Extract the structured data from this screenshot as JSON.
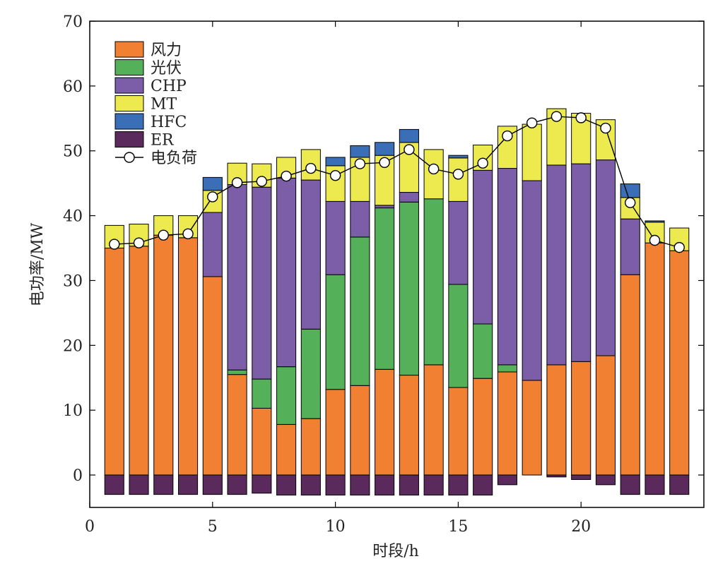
{
  "chart_data": {
    "type": "bar",
    "stacked": true,
    "xlabel": "时段/h",
    "ylabel": "电功率/MW",
    "xlim": [
      0,
      25
    ],
    "ylim": [
      -5,
      70
    ],
    "xticks": [
      0,
      5,
      10,
      15,
      20
    ],
    "yticks": [
      0,
      10,
      20,
      30,
      40,
      50,
      60,
      70
    ],
    "x": [
      1,
      2,
      3,
      4,
      5,
      6,
      7,
      8,
      9,
      10,
      11,
      12,
      13,
      14,
      15,
      16,
      17,
      18,
      19,
      20,
      21,
      22,
      23,
      24
    ],
    "legend_position": "top-left",
    "series": [
      {
        "name": "风力",
        "color": "#f28033",
        "values": [
          35,
          35.3,
          37,
          36.6,
          30.6,
          15.5,
          10.3,
          7.8,
          8.7,
          13.2,
          13.8,
          16.3,
          15.4,
          17,
          13.5,
          14.9,
          15.9,
          14.6,
          17,
          17.5,
          18.4,
          30.9,
          35.8,
          34.6
        ]
      },
      {
        "name": "光伏",
        "color": "#55b05a",
        "values": [
          0,
          0,
          0,
          0,
          0,
          0.7,
          4.5,
          8.9,
          13.8,
          17.7,
          22.9,
          24.9,
          26.7,
          25.6,
          15.9,
          8.4,
          1.1,
          0,
          0,
          0,
          0,
          0,
          0,
          0
        ]
      },
      {
        "name": "CHP",
        "color": "#7b5ea7",
        "values": [
          0,
          0,
          0,
          0,
          9.9,
          28.6,
          29.6,
          29.1,
          23,
          11.3,
          5.5,
          0.4,
          1.5,
          0,
          12.8,
          23.7,
          30.3,
          30.8,
          30.8,
          30.5,
          30.2,
          8.6,
          0,
          0
        ]
      },
      {
        "name": "MT",
        "color": "#ecea4f",
        "values": [
          3.5,
          3.4,
          3,
          3.4,
          3.4,
          3.3,
          3.6,
          3.2,
          4.7,
          5.5,
          6.8,
          7.7,
          7.7,
          7.6,
          6.7,
          3.9,
          6.5,
          8.7,
          8.7,
          7.8,
          6.2,
          3.3,
          3.2,
          3.5
        ]
      },
      {
        "name": "HFC",
        "color": "#3a6fb8",
        "values": [
          0,
          0,
          0,
          0,
          2,
          0,
          0,
          0,
          0,
          1.3,
          1.8,
          2,
          2,
          0,
          0.4,
          0,
          0,
          0,
          0,
          0,
          0,
          2.1,
          0.2,
          0
        ]
      },
      {
        "name": "ER",
        "color": "#5b2a5c",
        "values": [
          -3,
          -3,
          -3,
          -3,
          -3,
          -3,
          -2.8,
          -3.1,
          -3.1,
          -3.1,
          -3.1,
          -3.1,
          -3.1,
          -3.1,
          -3.1,
          -3.1,
          -1.5,
          0,
          -0.3,
          -0.7,
          -1.5,
          -3,
          -3,
          -3
        ]
      }
    ],
    "line_series": {
      "name": "电负荷",
      "values": [
        35.6,
        35.8,
        37,
        37.2,
        42.9,
        45.1,
        45.3,
        46.1,
        47.3,
        46.2,
        48,
        48.2,
        50.2,
        47.2,
        46.4,
        48.1,
        52.3,
        54.3,
        55.3,
        55.1,
        53.5,
        42,
        36.2,
        35.1
      ]
    }
  }
}
